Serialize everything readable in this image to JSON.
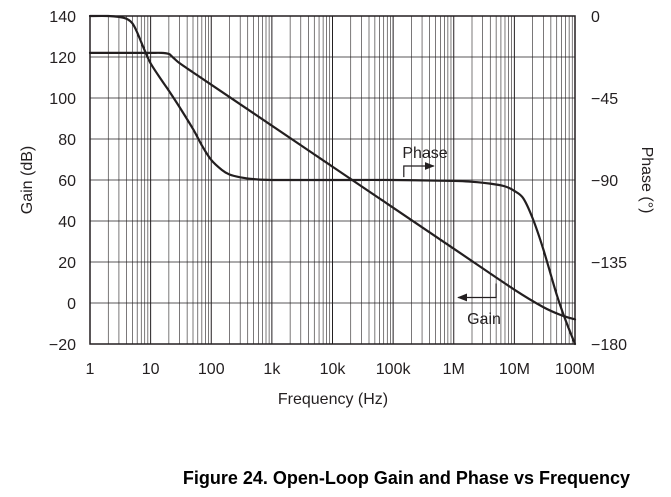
{
  "chart_data": {
    "type": "line",
    "title": "",
    "caption": "Figure 24. Open-Loop Gain and Phase vs Frequency",
    "xlabel": "Frequency (Hz)",
    "ylabel": "Gain (dB)",
    "y2label": "Phase (°)",
    "xscale": "log",
    "xlim": [
      1,
      100000000
    ],
    "ylim": [
      -20,
      140
    ],
    "y2lim": [
      -180,
      0
    ],
    "grid": true,
    "x_ticks": [
      {
        "value": 1,
        "label": "1"
      },
      {
        "value": 10,
        "label": "10"
      },
      {
        "value": 100,
        "label": "100"
      },
      {
        "value": 1000,
        "label": "1k"
      },
      {
        "value": 10000,
        "label": "10k"
      },
      {
        "value": 100000,
        "label": "100k"
      },
      {
        "value": 1000000,
        "label": "1M"
      },
      {
        "value": 10000000,
        "label": "10M"
      },
      {
        "value": 100000000,
        "label": "100M"
      }
    ],
    "y_ticks": [
      {
        "value": 140,
        "label": "140"
      },
      {
        "value": 120,
        "label": "120"
      },
      {
        "value": 100,
        "label": "100"
      },
      {
        "value": 80,
        "label": "80"
      },
      {
        "value": 60,
        "label": "60"
      },
      {
        "value": 40,
        "label": "40"
      },
      {
        "value": 20,
        "label": "20"
      },
      {
        "value": 0,
        "label": "0"
      },
      {
        "value": -20,
        "label": "−20"
      }
    ],
    "y2_ticks": [
      {
        "value": 0,
        "label": "0"
      },
      {
        "value": -45,
        "label": "−45"
      },
      {
        "value": -90,
        "label": "−90"
      },
      {
        "value": -135,
        "label": "−135"
      },
      {
        "value": -180,
        "label": "−180"
      }
    ],
    "series": [
      {
        "name": "Gain",
        "axis": "left",
        "x": [
          1,
          5,
          10,
          15,
          20,
          22,
          25,
          30,
          50,
          100,
          1000,
          10000,
          100000,
          1000000,
          10000000,
          30000000,
          60000000,
          100000000
        ],
        "y": [
          122,
          122,
          122,
          122,
          121.5,
          120.5,
          119,
          117,
          112.5,
          106.5,
          86.5,
          66.5,
          46.5,
          26.5,
          6.5,
          -2,
          -6,
          -8
        ]
      },
      {
        "name": "Phase",
        "axis": "right",
        "x": [
          1,
          2,
          3,
          4,
          5,
          6,
          8,
          10,
          15,
          20,
          30,
          50,
          70,
          100,
          150,
          200,
          300,
          500,
          1000,
          10000,
          100000,
          1000000,
          2000000,
          4000000,
          7000000,
          10000000,
          14000000,
          20000000,
          30000000,
          50000000,
          70000000,
          100000000
        ],
        "y": [
          0,
          0,
          -0.5,
          -1.5,
          -4,
          -9,
          -19,
          -26,
          -35,
          -41,
          -50,
          -62,
          -71,
          -79,
          -84.5,
          -87,
          -88.5,
          -89.5,
          -90,
          -90,
          -90,
          -90.5,
          -91,
          -92,
          -93.5,
          -96,
          -100,
          -111,
          -128,
          -153,
          -167,
          -180
        ]
      }
    ],
    "annotations": [
      {
        "text": "Phase",
        "series": "Phase",
        "arrow": "right"
      },
      {
        "text": "Gain",
        "series": "Gain",
        "arrow": "left"
      }
    ]
  }
}
